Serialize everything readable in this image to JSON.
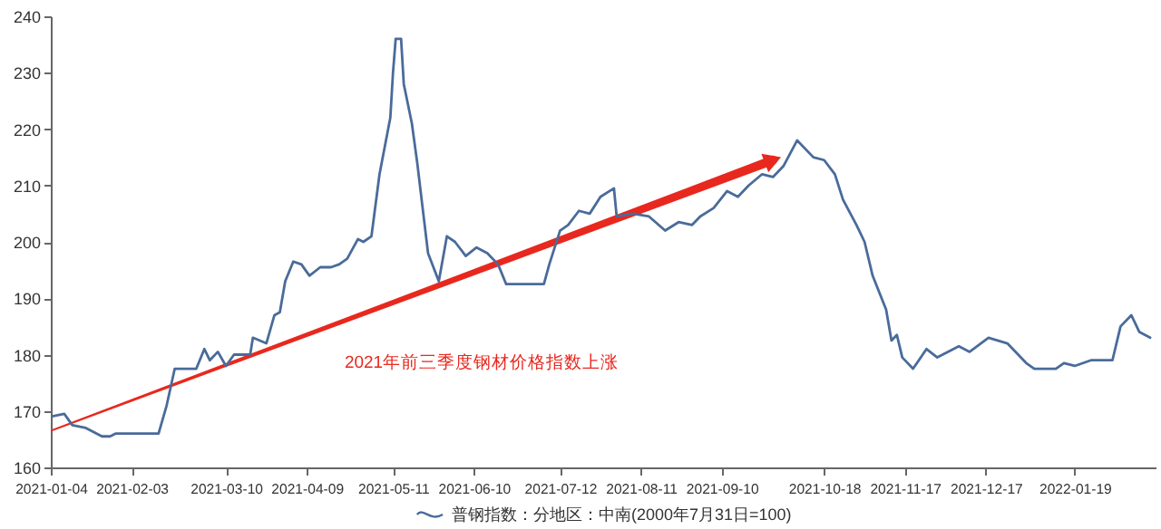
{
  "chart_data": {
    "type": "line",
    "xlim": [
      "2021-01-04",
      "2022-02-18"
    ],
    "xticks": [
      "2021-01-04",
      "2021-02-03",
      "2021-03-10",
      "2021-04-09",
      "2021-05-11",
      "2021-06-10",
      "2021-07-12",
      "2021-08-11",
      "2021-09-10",
      "2021-10-18",
      "2021-11-17",
      "2021-12-17",
      "2022-01-19"
    ],
    "ylim": [
      160,
      240
    ],
    "yticks": [
      160,
      170,
      180,
      190,
      200,
      210,
      220,
      230,
      240
    ],
    "grid": false,
    "legend": "bottom",
    "marker": "none",
    "line_style": "solid",
    "annotations": [
      {
        "text": "2021年前三季度钢材价格指数上涨",
        "x": "2021-09-29",
        "y": 214.5
      }
    ],
    "series": [
      {
        "name": "普钢指数：分地区：中南(2000年7月31日=100)",
        "color": "#4a6b9a",
        "x": [
          "2021-01-04",
          "2021-01-09",
          "2021-01-12",
          "2021-01-17",
          "2021-01-23",
          "2021-01-26",
          "2021-01-28",
          "2021-02-13",
          "2021-02-16",
          "2021-02-19",
          "2021-02-27",
          "2021-03-02",
          "2021-03-04",
          "2021-03-07",
          "2021-03-10",
          "2021-03-13",
          "2021-03-19",
          "2021-03-20",
          "2021-03-25",
          "2021-03-28",
          "2021-03-30",
          "2021-04-01",
          "2021-04-04",
          "2021-04-07",
          "2021-04-10",
          "2021-04-14",
          "2021-04-18",
          "2021-04-21",
          "2021-04-24",
          "2021-04-28",
          "2021-04-30",
          "2021-05-03",
          "2021-05-06",
          "2021-05-10",
          "2021-05-11",
          "2021-05-12",
          "2021-05-14",
          "2021-05-15",
          "2021-05-18",
          "2021-05-20",
          "2021-05-22",
          "2021-05-24",
          "2021-05-28",
          "2021-05-31",
          "2021-06-03",
          "2021-06-07",
          "2021-06-11",
          "2021-06-15",
          "2021-06-19",
          "2021-06-22",
          "2021-06-27",
          "2021-07-06",
          "2021-07-08",
          "2021-07-12",
          "2021-07-15",
          "2021-07-19",
          "2021-07-23",
          "2021-07-27",
          "2021-08-01",
          "2021-08-02",
          "2021-08-08",
          "2021-08-14",
          "2021-08-20",
          "2021-08-25",
          "2021-08-30",
          "2021-09-02",
          "2021-09-07",
          "2021-09-12",
          "2021-09-16",
          "2021-09-20",
          "2021-09-25",
          "2021-09-29",
          "2021-10-03",
          "2021-10-08",
          "2021-10-14",
          "2021-10-18",
          "2021-10-22",
          "2021-10-25",
          "2021-10-30",
          "2021-11-02",
          "2021-11-05",
          "2021-11-10",
          "2021-11-12",
          "2021-11-14",
          "2021-11-16",
          "2021-11-20",
          "2021-11-25",
          "2021-11-29",
          "2021-12-07",
          "2021-12-11",
          "2021-12-18",
          "2021-12-25",
          "2022-01-01",
          "2022-01-04",
          "2022-01-12",
          "2022-01-15",
          "2022-01-19",
          "2022-01-25",
          "2022-02-02",
          "2022-02-05",
          "2022-02-09",
          "2022-02-12",
          "2022-02-16"
        ],
        "values": [
          169,
          169.5,
          167.5,
          167,
          165.5,
          165.5,
          166,
          166,
          171,
          177.5,
          177.5,
          181,
          179,
          180.5,
          178,
          180,
          180,
          183,
          182,
          187,
          187.5,
          193,
          196.5,
          196,
          194,
          195.5,
          195.5,
          196,
          197,
          200.5,
          200,
          201,
          212,
          222,
          230,
          236,
          236,
          228,
          221,
          214,
          206,
          198,
          193,
          201,
          200,
          197.5,
          199,
          198,
          196,
          192.5,
          192.5,
          192.5,
          196,
          202,
          203,
          205.5,
          205,
          208,
          209.5,
          204.5,
          205,
          204.5,
          202,
          203.5,
          203,
          204.5,
          206,
          209,
          208,
          210,
          212,
          211.5,
          213.5,
          218,
          215,
          214.5,
          212,
          207.5,
          203,
          200,
          194,
          188,
          182.5,
          183.5,
          179.5,
          177.5,
          181,
          179.5,
          181.5,
          180.5,
          183,
          182,
          178.5,
          177.5,
          177.5,
          178.5,
          178,
          179,
          179,
          185,
          187,
          184,
          183
        ]
      }
    ]
  }
}
